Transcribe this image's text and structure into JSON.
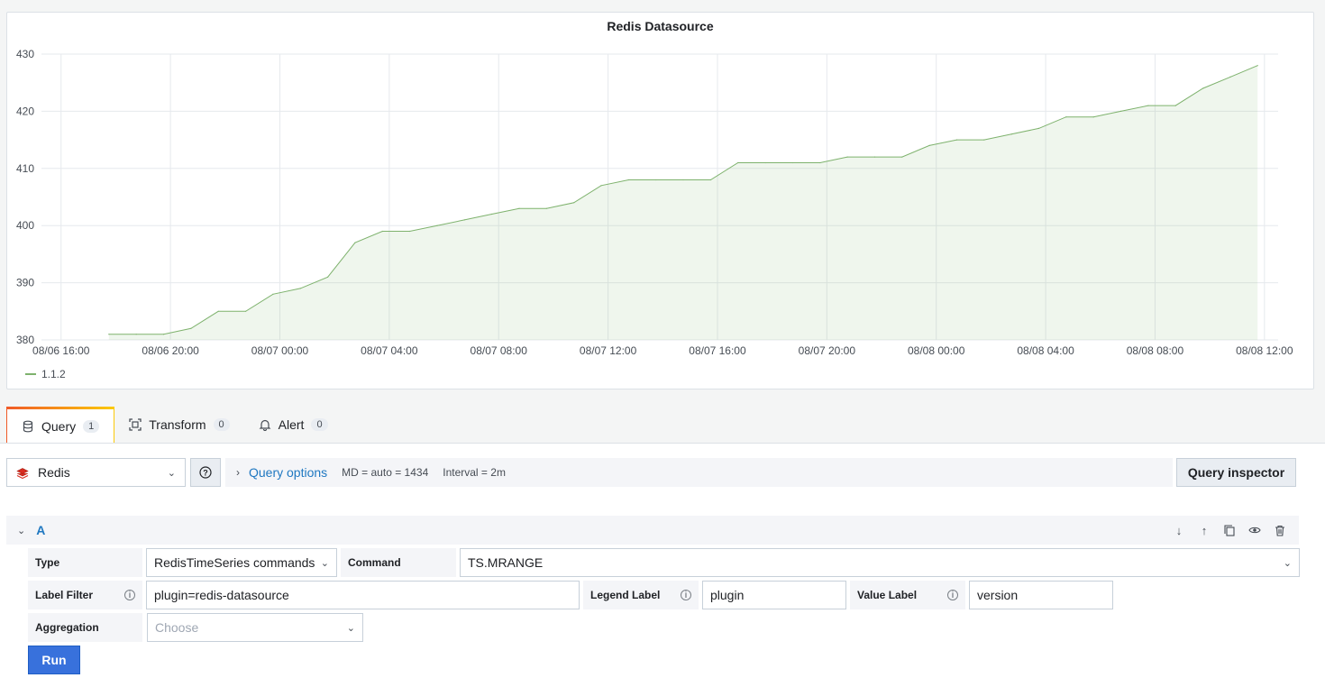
{
  "chart_data": {
    "type": "area",
    "title": "Redis Datasource",
    "x": [
      "08/06 17:45",
      "08/06 18:45",
      "08/06 19:45",
      "08/06 20:45",
      "08/06 21:45",
      "08/06 22:45",
      "08/06 23:45",
      "08/07 00:45",
      "08/07 01:45",
      "08/07 02:45",
      "08/07 03:45",
      "08/07 04:45",
      "08/07 05:45",
      "08/07 06:45",
      "08/07 07:45",
      "08/07 08:45",
      "08/07 09:45",
      "08/07 10:45",
      "08/07 11:45",
      "08/07 12:45",
      "08/07 13:45",
      "08/07 14:45",
      "08/07 15:45",
      "08/07 16:45",
      "08/07 17:45",
      "08/07 18:45",
      "08/07 19:45",
      "08/07 20:45",
      "08/07 21:45",
      "08/07 22:45",
      "08/07 23:45",
      "08/08 00:45",
      "08/08 01:45",
      "08/08 02:45",
      "08/08 03:45",
      "08/08 04:45",
      "08/08 05:45",
      "08/08 06:45",
      "08/08 07:45",
      "08/08 08:45",
      "08/08 09:45",
      "08/08 10:45",
      "08/08 11:45"
    ],
    "series": [
      {
        "name": "1.1.2",
        "color": "#7eb26d",
        "values": [
          381,
          381,
          381,
          382,
          385,
          385,
          388,
          389,
          391,
          397,
          399,
          399,
          400,
          401,
          402,
          403,
          403,
          404,
          407,
          408,
          408,
          408,
          408,
          411,
          411,
          411,
          411,
          412,
          412,
          412,
          414,
          415,
          415,
          416,
          417,
          419,
          419,
          420,
          421,
          421,
          424,
          426,
          428
        ]
      }
    ],
    "xlabel": "",
    "ylabel": "",
    "x_ticks": [
      "08/06 16:00",
      "08/06 20:00",
      "08/07 00:00",
      "08/07 04:00",
      "08/07 08:00",
      "08/07 12:00",
      "08/07 16:00",
      "08/07 20:00",
      "08/08 00:00",
      "08/08 04:00",
      "08/08 08:00",
      "08/08 12:00"
    ],
    "y_ticks": [
      380,
      390,
      400,
      410,
      420,
      430
    ],
    "ylim": [
      380,
      430
    ],
    "grid": true,
    "legend": "bottom-left"
  },
  "tabs": [
    {
      "label": "Query",
      "count": "1",
      "icon": "database-icon"
    },
    {
      "label": "Transform",
      "count": "0",
      "icon": "transform-icon"
    },
    {
      "label": "Alert",
      "count": "0",
      "icon": "bell-icon"
    }
  ],
  "datasource": {
    "name": "Redis",
    "icon": "redis-icon"
  },
  "query_options": {
    "title": "Query options",
    "md": "MD = auto = 1434",
    "interval": "Interval = 2m"
  },
  "query_inspector_label": "Query inspector",
  "query_row": {
    "ref_id": "A"
  },
  "form": {
    "type_label": "Type",
    "type_value": "RedisTimeSeries commands",
    "command_label": "Command",
    "command_value": "TS.MRANGE",
    "label_filter_label": "Label Filter",
    "label_filter_value": "plugin=redis-datasource",
    "legend_label_label": "Legend Label",
    "legend_label_value": "plugin",
    "value_label_label": "Value Label",
    "value_label_value": "version",
    "aggregation_label": "Aggregation",
    "aggregation_placeholder": "Choose"
  },
  "run_label": "Run",
  "colors": {
    "accent": "#1f78c1",
    "run_button": "#3871dc",
    "series": "#7eb26d"
  }
}
